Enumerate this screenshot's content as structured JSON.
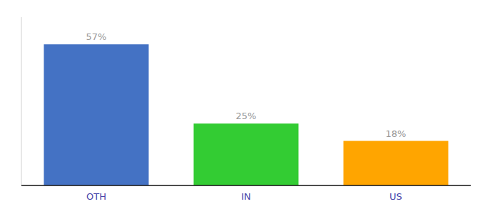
{
  "chart_data": {
    "type": "bar",
    "categories": [
      "OTH",
      "IN",
      "US"
    ],
    "values": [
      57,
      25,
      18
    ],
    "value_labels": [
      "57%",
      "25%",
      "18%"
    ],
    "colors": [
      "#4472C4",
      "#33CC33",
      "#FFA500"
    ],
    "ylim": [
      0,
      68
    ],
    "data_labels": true,
    "tick_labels": "x",
    "grid": false
  }
}
